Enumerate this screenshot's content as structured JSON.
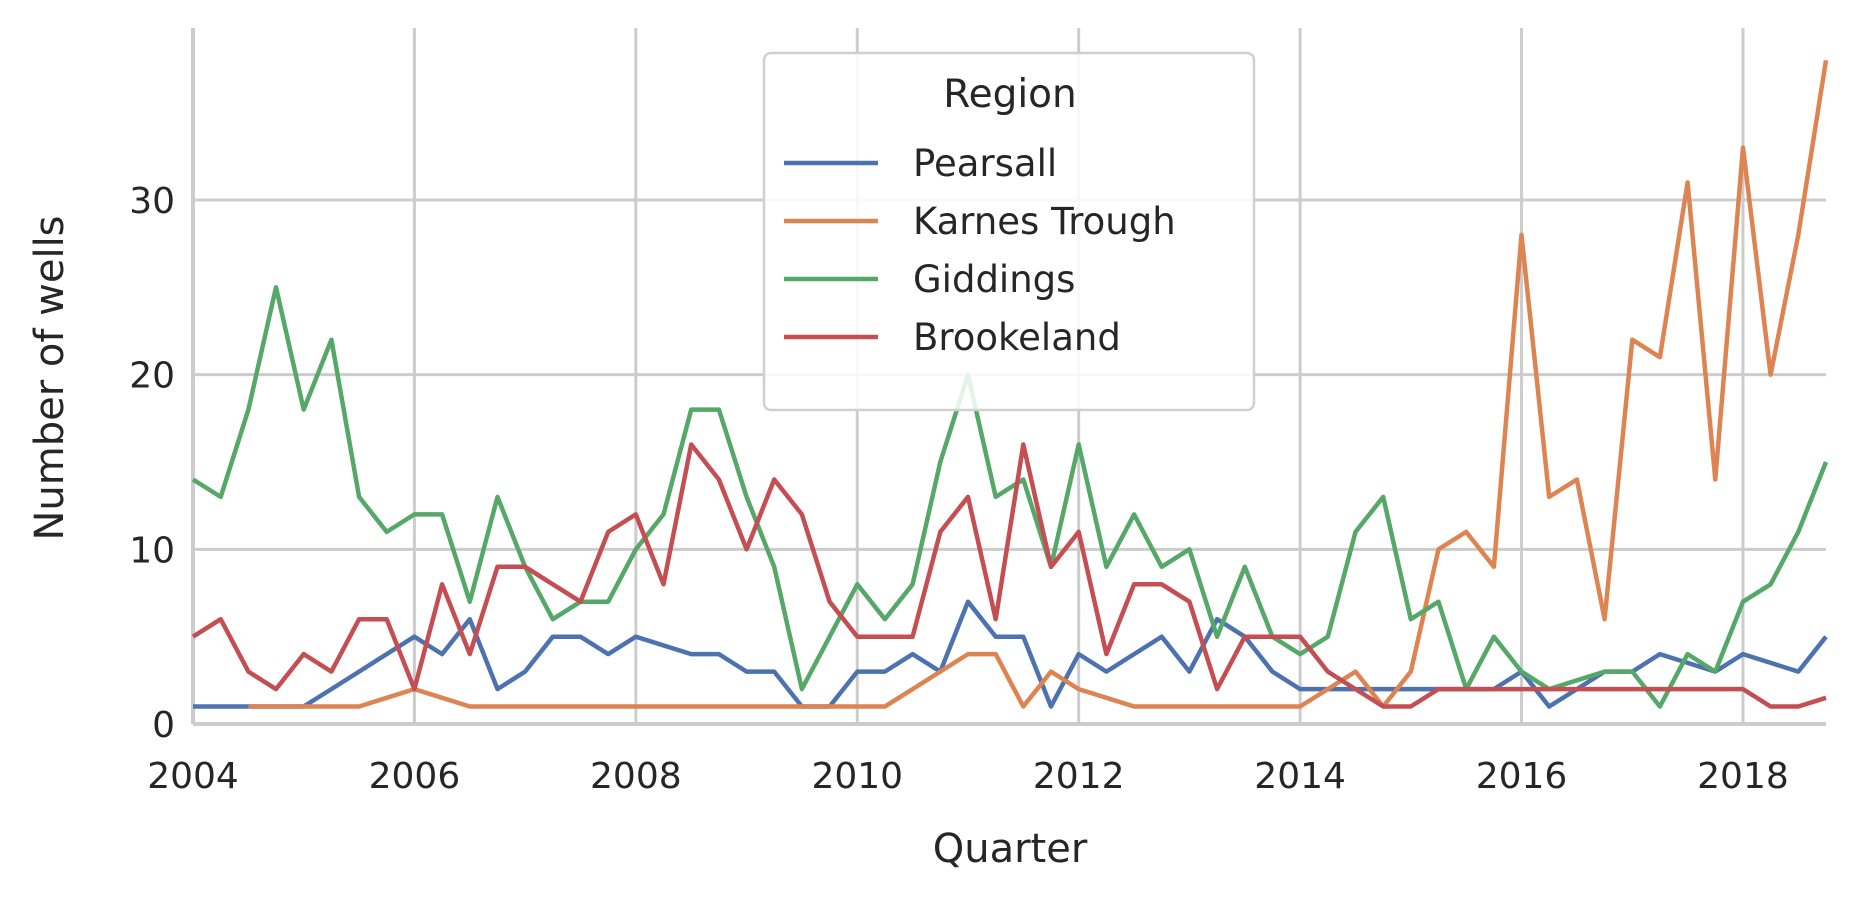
{
  "chart_data": {
    "type": "line",
    "xlabel": "Quarter",
    "ylabel": "Number of wells",
    "xlim": [
      2004.0,
      2018.75
    ],
    "ylim": [
      0,
      40
    ],
    "x_ticks": [
      "2004",
      "2006",
      "2008",
      "2010",
      "2012",
      "2014",
      "2016",
      "2018"
    ],
    "y_ticks": [
      "0",
      "10",
      "20",
      "30"
    ],
    "grid": true,
    "legend": {
      "title": "Region",
      "placement": "upper center"
    },
    "x": [
      "2004-01",
      "2004-04",
      "2004-07",
      "2004-10",
      "2005-01",
      "2005-04",
      "2005-07",
      "2005-10",
      "2006-01",
      "2006-04",
      "2006-07",
      "2006-10",
      "2007-01",
      "2007-04",
      "2007-07",
      "2007-10",
      "2008-01",
      "2008-04",
      "2008-07",
      "2008-10",
      "2009-01",
      "2009-04",
      "2009-07",
      "2009-10",
      "2010-01",
      "2010-04",
      "2010-07",
      "2010-10",
      "2011-01",
      "2011-04",
      "2011-07",
      "2011-10",
      "2012-01",
      "2012-04",
      "2012-07",
      "2012-10",
      "2013-01",
      "2013-04",
      "2013-07",
      "2013-10",
      "2014-01",
      "2014-04",
      "2014-07",
      "2014-10",
      "2015-01",
      "2015-04",
      "2015-07",
      "2015-10",
      "2016-01",
      "2016-04",
      "2016-07",
      "2016-10",
      "2017-01",
      "2017-04",
      "2017-07",
      "2017-10",
      "2018-01",
      "2018-04",
      "2018-07",
      "2018-10"
    ],
    "series": [
      {
        "name": "Pearsall",
        "color": "#4c72b0",
        "values": [
          1,
          1,
          1,
          1,
          1,
          2,
          3,
          4,
          5,
          4,
          6,
          2,
          3,
          5,
          5,
          4,
          5,
          null,
          4,
          4,
          3,
          3,
          1,
          1,
          3,
          3,
          4,
          3,
          7,
          5,
          5,
          1,
          4,
          3,
          4,
          5,
          3,
          6,
          5,
          3,
          2,
          2,
          2,
          2,
          2,
          2,
          2,
          2,
          3,
          1,
          2,
          3,
          3,
          4,
          3.5,
          3,
          4,
          null,
          3,
          5
        ]
      },
      {
        "name": "Karnes Trough",
        "color": "#dd8452",
        "values": [
          null,
          null,
          1,
          1,
          1,
          1,
          1,
          1.5,
          2,
          1.5,
          1,
          1,
          1,
          1,
          1,
          1,
          1,
          1,
          1,
          1,
          1,
          1,
          1,
          1,
          1,
          1,
          2,
          3,
          4,
          4,
          1,
          3,
          2,
          1.5,
          1,
          1,
          1,
          1,
          1,
          1,
          1,
          2,
          3,
          1,
          3,
          10,
          11,
          9,
          28,
          13,
          14,
          6,
          22,
          21,
          31,
          14,
          33,
          20,
          28,
          38
        ]
      },
      {
        "name": "Giddings",
        "color": "#55a868",
        "values": [
          14,
          13,
          18,
          25,
          18,
          22,
          13,
          11,
          12,
          12,
          7,
          13,
          9,
          6,
          7,
          7,
          10,
          12,
          18,
          18,
          13,
          9,
          2,
          5,
          8,
          6,
          8,
          15,
          20,
          13,
          14,
          9,
          16,
          9,
          12,
          9,
          10,
          5,
          9,
          5,
          4,
          5,
          11,
          13,
          6,
          7,
          2,
          5,
          3,
          2,
          2.5,
          3,
          3,
          1,
          4,
          3,
          7,
          8,
          11,
          15
        ]
      },
      {
        "name": "Brookeland",
        "color": "#c44e52",
        "values": [
          5,
          6,
          3,
          2,
          4,
          3,
          6,
          6,
          2,
          8,
          4,
          9,
          9,
          8,
          7,
          11,
          12,
          8,
          16,
          14,
          10,
          14,
          12,
          7,
          5,
          5,
          5,
          11,
          13,
          6,
          16,
          9,
          11,
          4,
          8,
          8,
          7,
          2,
          5,
          5,
          5,
          3,
          2,
          1,
          1,
          2,
          2,
          2,
          2,
          2,
          2,
          2,
          2,
          2,
          2,
          2,
          2,
          1,
          1,
          1.5
        ]
      }
    ]
  }
}
